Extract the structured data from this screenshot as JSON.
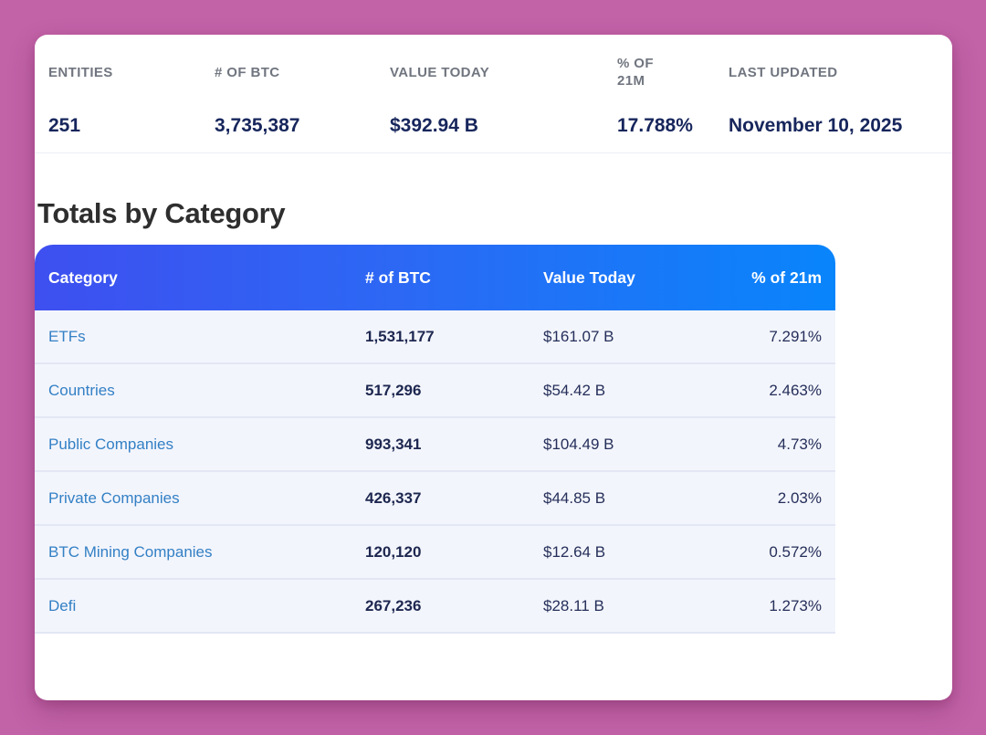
{
  "summary": {
    "columns": [
      {
        "label": "ENTITIES",
        "value": "251"
      },
      {
        "label": "# OF BTC",
        "value": "3,735,387"
      },
      {
        "label": "VALUE TODAY",
        "value": "$392.94 B"
      },
      {
        "label": "% OF 21M",
        "value": "17.788%"
      },
      {
        "label": "LAST UPDATED",
        "value": "November 10, 2025"
      }
    ]
  },
  "section": {
    "title": "Totals by Category"
  },
  "table": {
    "headers": [
      "Category",
      "# of BTC",
      "Value Today",
      "% of 21m"
    ],
    "rows": [
      {
        "category": "ETFs",
        "btc": "1,531,177",
        "value": "$161.07 B",
        "pct": "7.291%"
      },
      {
        "category": "Countries",
        "btc": "517,296",
        "value": "$54.42 B",
        "pct": "2.463%"
      },
      {
        "category": "Public Companies",
        "btc": "993,341",
        "value": "$104.49 B",
        "pct": "4.73%"
      },
      {
        "category": "Private Companies",
        "btc": "426,337",
        "value": "$44.85 B",
        "pct": "2.03%"
      },
      {
        "category": "BTC Mining Companies",
        "btc": "120,120",
        "value": "$12.64 B",
        "pct": "0.572%"
      },
      {
        "category": "Defi",
        "btc": "267,236",
        "value": "$28.11 B",
        "pct": "1.273%"
      }
    ]
  },
  "colors": {
    "background": "#c262a7",
    "card": "#ffffff",
    "header_gradient_start": "#3e4ff0",
    "header_gradient_end": "#0985fb",
    "row_background": "#f3f5fc",
    "category_link": "#3380c5",
    "stat_value_navy": "#17265c",
    "stat_label_gray": "#70757f"
  }
}
